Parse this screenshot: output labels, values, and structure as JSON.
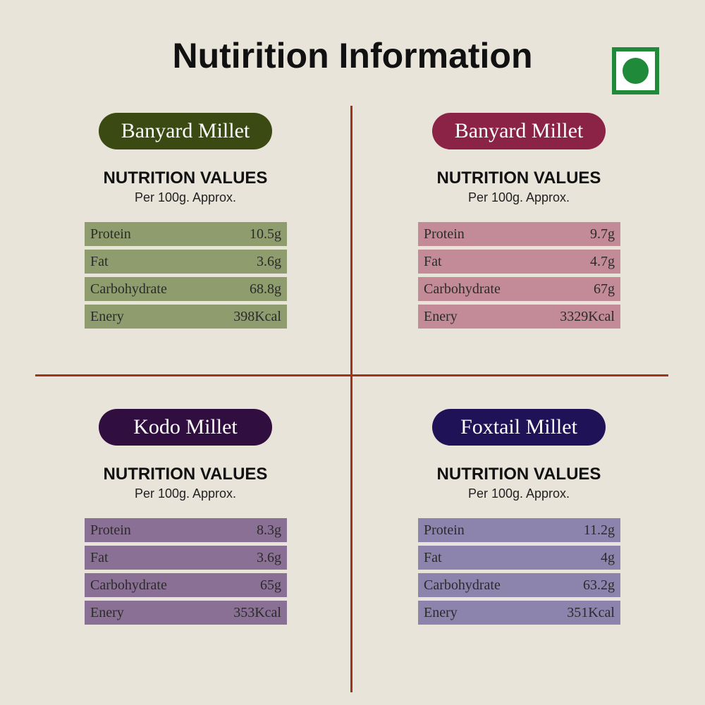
{
  "header": {
    "title": "Nutirition Information"
  },
  "panels": [
    {
      "name": "Banyard Millet",
      "heading": "NUTRITION VALUES",
      "subheading": "Per 100g. Approx.",
      "rows": [
        [
          "Protein",
          "10.5g"
        ],
        [
          "Fat",
          "3.6g"
        ],
        [
          "Carbohydrate",
          "68.8g"
        ],
        [
          "Enery",
          "398Kcal"
        ]
      ]
    },
    {
      "name": "Banyard Millet",
      "heading": "NUTRITION VALUES",
      "subheading": "Per 100g. Approx.",
      "rows": [
        [
          "Protein",
          "9.7g"
        ],
        [
          "Fat",
          "4.7g"
        ],
        [
          "Carbohydrate",
          "67g"
        ],
        [
          "Enery",
          "3329Kcal"
        ]
      ]
    },
    {
      "name": "Kodo Millet",
      "heading": "NUTRITION VALUES",
      "subheading": "Per 100g. Approx.",
      "rows": [
        [
          "Protein",
          "8.3g"
        ],
        [
          "Fat",
          "3.6g"
        ],
        [
          "Carbohydrate",
          "65g"
        ],
        [
          "Enery",
          "353Kcal"
        ]
      ]
    },
    {
      "name": "Foxtail Millet",
      "heading": "NUTRITION VALUES",
      "subheading": "Per 100g. Approx.",
      "rows": [
        [
          "Protein",
          "11.2g"
        ],
        [
          "Fat",
          "4g"
        ],
        [
          "Carbohydrate",
          "63.2g"
        ],
        [
          "Enery",
          "351Kcal"
        ]
      ]
    }
  ]
}
